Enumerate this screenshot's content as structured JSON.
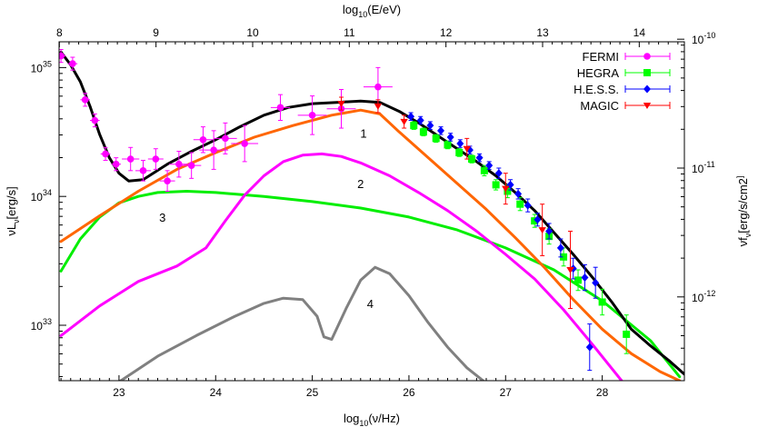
{
  "chart_data": {
    "type": "scatter",
    "xlabel_bottom": "log10(ν/Hz)",
    "xlabel_top": "log10(E/eV)",
    "ylabel_left": "νLν[erg/s]",
    "ylabel_right": "νfν[erg/s/cm2]",
    "xlim": [
      22.38,
      28.85
    ],
    "ylim_log10": [
      32.57,
      35.2
    ],
    "x_ticks": [
      23,
      24,
      25,
      26,
      27,
      28
    ],
    "top_ticks": [
      8,
      9,
      10,
      11,
      12,
      13,
      14
    ],
    "top_offset": 14.383,
    "y_ticks": [
      {
        "value": 33,
        "label": "10^33"
      },
      {
        "value": 34,
        "label": "10^34"
      },
      {
        "value": 35,
        "label": "10^35"
      }
    ],
    "right_ticks": [
      {
        "value": 33.22,
        "label": "10^-12"
      },
      {
        "value": 34.22,
        "label": "10^-11"
      },
      {
        "value": 35.22,
        "label": "10^-10"
      }
    ],
    "legend_position": "top-right",
    "series": [
      {
        "name": "FERMI",
        "color": "#ff00ff",
        "marker": "circle",
        "points": [
          [
            22.4,
            35.09,
            0.05,
            0.05
          ],
          [
            22.52,
            35.03,
            0.05,
            0.05
          ],
          [
            22.65,
            34.75,
            0.05,
            0.05
          ],
          [
            22.75,
            34.59,
            0.05,
            0.05
          ],
          [
            22.86,
            34.33,
            0.05,
            0.05
          ],
          [
            22.97,
            34.25,
            0.05,
            0.05
          ],
          [
            23.12,
            34.29,
            0.09,
            0.09
          ],
          [
            23.25,
            34.2,
            0.08,
            0.08
          ],
          [
            23.38,
            34.29,
            0.08,
            0.08
          ],
          [
            23.5,
            34.12,
            0.08,
            0.08
          ],
          [
            23.62,
            34.25,
            0.1,
            0.1
          ],
          [
            23.75,
            34.24,
            0.1,
            0.1
          ],
          [
            23.87,
            34.44,
            0.1,
            0.1
          ],
          [
            23.98,
            34.36,
            0.15,
            0.15
          ],
          [
            24.1,
            34.45,
            0.12,
            0.12
          ],
          [
            24.3,
            34.41,
            0.14,
            0.14
          ],
          [
            24.67,
            34.69,
            0.1,
            0.1
          ],
          [
            25.0,
            34.63,
            0.15,
            0.15
          ],
          [
            25.3,
            34.68,
            0.15,
            0.15
          ],
          [
            25.68,
            34.85,
            0.15,
            0.15
          ]
        ]
      },
      {
        "name": "HEGRA",
        "color": "#00ff00",
        "marker": "square",
        "points": [
          [
            26.05,
            34.55,
            0.03,
            0.03
          ],
          [
            26.15,
            34.5,
            0.03,
            0.03
          ],
          [
            26.28,
            34.45,
            0.03,
            0.03
          ],
          [
            26.4,
            34.4,
            0.03,
            0.03
          ],
          [
            26.52,
            34.34,
            0.03,
            0.03
          ],
          [
            26.65,
            34.29,
            0.03,
            0.03
          ],
          [
            26.78,
            34.2,
            0.04,
            0.04
          ],
          [
            26.9,
            34.09,
            0.04,
            0.04
          ],
          [
            27.02,
            34.04,
            0.05,
            0.05
          ],
          [
            27.15,
            33.94,
            0.05,
            0.05
          ],
          [
            27.3,
            33.81,
            0.05,
            0.05
          ],
          [
            27.45,
            33.69,
            0.06,
            0.06
          ],
          [
            27.6,
            33.53,
            0.07,
            0.07
          ],
          [
            27.75,
            33.35,
            0.08,
            0.08
          ],
          [
            28.0,
            33.18,
            0.1,
            0.1
          ],
          [
            28.25,
            32.93,
            0.15,
            0.15
          ]
        ]
      },
      {
        "name": "H.E.S.S.",
        "color": "#0000ff",
        "marker": "diamond",
        "points": [
          [
            26.02,
            34.62,
            0.03,
            0.03
          ],
          [
            26.12,
            34.59,
            0.03,
            0.03
          ],
          [
            26.22,
            34.55,
            0.03,
            0.03
          ],
          [
            26.33,
            34.51,
            0.03,
            0.03
          ],
          [
            26.43,
            34.46,
            0.03,
            0.03
          ],
          [
            26.53,
            34.41,
            0.03,
            0.03
          ],
          [
            26.63,
            34.36,
            0.03,
            0.03
          ],
          [
            26.73,
            34.3,
            0.03,
            0.03
          ],
          [
            26.83,
            34.24,
            0.03,
            0.03
          ],
          [
            26.93,
            34.18,
            0.04,
            0.04
          ],
          [
            27.05,
            34.09,
            0.04,
            0.04
          ],
          [
            27.13,
            34.02,
            0.04,
            0.04
          ],
          [
            27.23,
            33.93,
            0.05,
            0.05
          ],
          [
            27.33,
            33.82,
            0.05,
            0.05
          ],
          [
            27.45,
            33.73,
            0.06,
            0.06
          ],
          [
            27.57,
            33.6,
            0.07,
            0.07
          ],
          [
            27.7,
            33.44,
            0.08,
            0.08
          ],
          [
            27.82,
            33.37,
            0.1,
            0.1
          ],
          [
            27.93,
            33.33,
            0.12,
            0.12
          ],
          [
            27.87,
            32.83,
            0.18,
            0.18
          ]
        ]
      },
      {
        "name": "MAGIC",
        "color": "#ff0000",
        "marker": "triangle",
        "points": [
          [
            25.3,
            34.72,
            0.05,
            0.05
          ],
          [
            25.68,
            34.7,
            0.05,
            0.05
          ],
          [
            25.95,
            34.58,
            0.05,
            0.05
          ],
          [
            26.6,
            34.37,
            0.08,
            0.08
          ],
          [
            27.0,
            34.06,
            0.12,
            0.12
          ],
          [
            27.38,
            33.74,
            0.2,
            0.2
          ],
          [
            27.67,
            33.43,
            0.3,
            0.3
          ]
        ]
      }
    ],
    "curves": [
      {
        "id": "total",
        "color": "#000000",
        "x": [
          22.4,
          22.5,
          22.6,
          22.7,
          22.8,
          22.9,
          23.0,
          23.1,
          23.25,
          23.5,
          23.75,
          24.0,
          24.25,
          24.5,
          24.75,
          25.0,
          25.25,
          25.5,
          25.7,
          25.9,
          26.1,
          26.3,
          26.5,
          26.7,
          26.9,
          27.1,
          27.3,
          27.5,
          27.7,
          27.9,
          28.1,
          28.3,
          28.5,
          28.7,
          28.85
        ],
        "y": [
          35.12,
          35.02,
          34.89,
          34.7,
          34.48,
          34.3,
          34.18,
          34.12,
          34.13,
          34.25,
          34.35,
          34.44,
          34.54,
          34.63,
          34.69,
          34.72,
          34.73,
          34.74,
          34.73,
          34.66,
          34.57,
          34.47,
          34.37,
          34.27,
          34.16,
          34.03,
          33.89,
          33.72,
          33.55,
          33.37,
          33.18,
          32.97,
          32.84,
          32.72,
          32.62
        ]
      },
      {
        "id": "c1",
        "color": "#ff6600",
        "label": "1",
        "label_x": 25.53,
        "label_y": 34.49,
        "x": [
          22.4,
          22.8,
          23.2,
          23.6,
          24.0,
          24.4,
          24.8,
          25.2,
          25.5,
          25.7,
          25.9,
          26.2,
          26.5,
          26.8,
          27.1,
          27.4,
          27.7,
          28.0,
          28.3,
          28.6,
          28.8
        ],
        "y": [
          33.65,
          33.85,
          34.04,
          34.21,
          34.34,
          34.46,
          34.55,
          34.63,
          34.67,
          34.64,
          34.5,
          34.3,
          34.1,
          33.9,
          33.68,
          33.45,
          33.2,
          32.97,
          32.78,
          32.64,
          32.57
        ]
      },
      {
        "id": "c2",
        "color": "#ff00ff",
        "label": "2",
        "label_x": 25.5,
        "label_y": 34.1,
        "x": [
          22.4,
          22.8,
          23.2,
          23.6,
          23.9,
          24.1,
          24.3,
          24.5,
          24.7,
          24.9,
          25.1,
          25.3,
          25.5,
          25.8,
          26.1,
          26.4,
          26.7,
          27.0,
          27.3,
          27.6,
          27.9,
          28.2
        ],
        "y": [
          32.92,
          33.15,
          33.34,
          33.46,
          33.6,
          33.81,
          34.01,
          34.16,
          34.27,
          34.32,
          34.33,
          34.31,
          34.26,
          34.16,
          34.03,
          33.89,
          33.73,
          33.55,
          33.36,
          33.12,
          32.85,
          32.57
        ]
      },
      {
        "id": "c3",
        "color": "#00ee00",
        "label": "3",
        "label_x": 23.45,
        "label_y": 33.84,
        "x": [
          22.4,
          22.6,
          22.8,
          23.0,
          23.2,
          23.4,
          23.7,
          24.0,
          24.5,
          25.0,
          25.5,
          26.0,
          26.5,
          27.0,
          27.5,
          28.0,
          28.5,
          28.8
        ],
        "y": [
          33.42,
          33.67,
          33.84,
          33.95,
          34.0,
          34.03,
          34.04,
          34.03,
          34.0,
          33.96,
          33.91,
          33.84,
          33.74,
          33.6,
          33.43,
          33.19,
          32.88,
          32.6
        ]
      },
      {
        "id": "c4",
        "color": "#808080",
        "label": "4",
        "label_x": 25.6,
        "label_y": 33.17,
        "x": [
          23.0,
          23.4,
          23.8,
          24.2,
          24.5,
          24.7,
          24.9,
          25.05,
          25.12,
          25.2,
          25.35,
          25.5,
          25.65,
          25.8,
          26.0,
          26.2,
          26.4,
          26.6,
          26.8
        ],
        "y": [
          32.56,
          32.76,
          32.92,
          33.07,
          33.17,
          33.21,
          33.2,
          33.07,
          32.91,
          32.89,
          33.13,
          33.35,
          33.45,
          33.4,
          33.23,
          33.02,
          32.83,
          32.67,
          32.55
        ]
      }
    ]
  }
}
